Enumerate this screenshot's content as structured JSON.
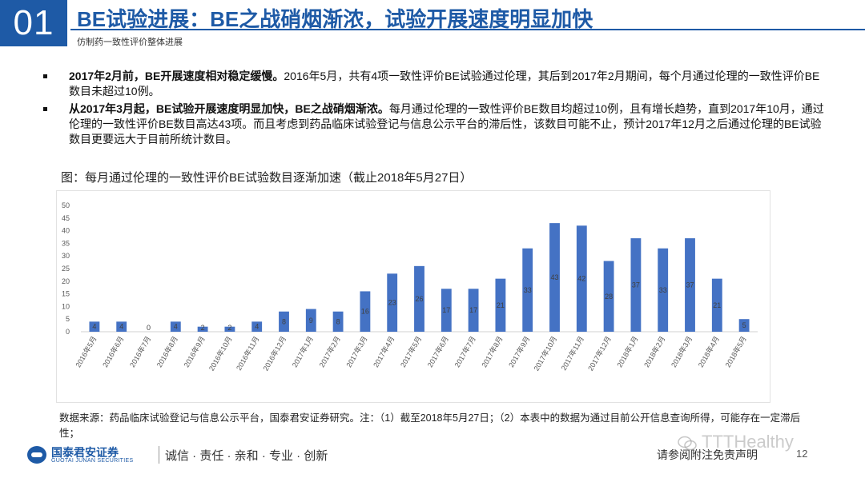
{
  "header": {
    "number": "01",
    "title": "BE试验进展：BE之战硝烟渐浓，试验开展速度明显加快",
    "subtitle": "仿制药一致性评价整体进展"
  },
  "bullets": [
    {
      "bold": "2017年2月前，BE开展速度相对稳定缓慢。",
      "text": "2016年5月，共有4项一致性评价BE试验通过伦理，其后到2017年2月期间，每个月通过伦理的一致性评价BE数目未超过10例。"
    },
    {
      "bold": "从2017年3月起，BE试验开展速度明显加快，BE之战硝烟渐浓。",
      "text": "每月通过伦理的一致性评价BE数目均超过10例，且有增长趋势，直到2017年10月，通过伦理的一致性评价BE数目高达43项。而且考虑到药品临床试验登记与信息公示平台的滞后性，该数目可能不止，预计2017年12月之后通过伦理的BE试验数目更要远大于目前所统计数目。"
    }
  ],
  "figure_caption": "图：每月通过伦理的一致性评价BE试验数目逐渐加速（截止2018年5月27日）",
  "chart_data": {
    "type": "bar",
    "categories": [
      "2016年5月",
      "2016年6月",
      "2016年7月",
      "2016年8月",
      "2016年9月",
      "2016年10月",
      "2016年11月",
      "2016年12月",
      "2017年1月",
      "2017年2月",
      "2017年3月",
      "2017年4月",
      "2017年5月",
      "2017年6月",
      "2017年7月",
      "2017年8月",
      "2017年9月",
      "2017年10月",
      "2017年11月",
      "2017年12月",
      "2018年1月",
      "2018年2月",
      "2018年3月",
      "2018年4月",
      "2018年5月"
    ],
    "values": [
      4,
      4,
      0,
      4,
      2,
      2,
      4,
      8,
      9,
      8,
      16,
      23,
      26,
      17,
      17,
      21,
      33,
      43,
      42,
      28,
      37,
      33,
      37,
      21,
      5
    ],
    "yticks": [
      0,
      5,
      10,
      15,
      20,
      25,
      30,
      35,
      40,
      45,
      50
    ],
    "ylim": [
      0,
      50
    ],
    "bar_color": "#4472c4",
    "grid": false,
    "data_labels": true,
    "title": "",
    "xlabel": "",
    "ylabel": ""
  },
  "source_note": "数据来源：药品临床试验登记与信息公示平台，国泰君安证券研究。注：（1）截至2018年5月27日；（2）本表中的数据为通过目前公开信息查询所得，可能存在一定滞后性；",
  "footer": {
    "logo_cn": "国泰君安证券",
    "logo_en": "GUOTAI JUNAN SECURITIES",
    "slogan": "诚信 · 责任 · 亲和 · 专业 · 创新",
    "disclaimer": "请参阅附注免责声明",
    "page_number": "12",
    "watermark": "TTTHealthy"
  },
  "colors": {
    "brand_blue": "#1e5aa6",
    "bar": "#4472c4"
  }
}
